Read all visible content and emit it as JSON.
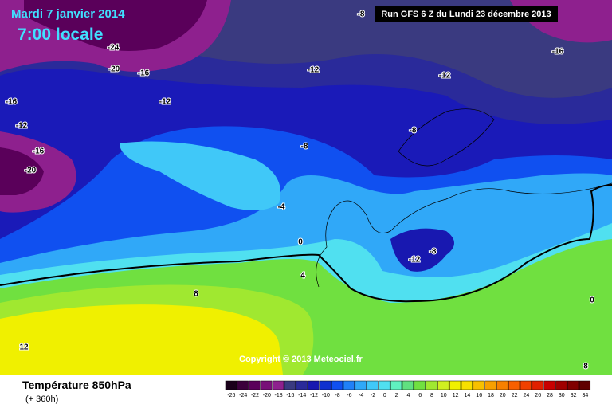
{
  "header": {
    "date": "Mardi 7 janvier 2014",
    "time": "7:00 locale",
    "run": "Run GFS 6 Z du Lundi 23 décembre 2013",
    "copyright": "Copyright © 2013 Meteociel.fr"
  },
  "footer": {
    "title": "Température 850hPa",
    "lead": "(+ 360h)"
  },
  "legend": {
    "values": [
      -26,
      -24,
      -22,
      -20,
      -18,
      -16,
      -14,
      -12,
      -10,
      -8,
      -6,
      -4,
      -2,
      0,
      2,
      4,
      6,
      8,
      10,
      12,
      14,
      16,
      18,
      20,
      22,
      24,
      26,
      28,
      30,
      32,
      34
    ],
    "colors": [
      "#1a001a",
      "#3c003c",
      "#5a005a",
      "#781078",
      "#8e208e",
      "#3a3a80",
      "#2a2a9a",
      "#1818b0",
      "#1030d0",
      "#1050f0",
      "#2080f8",
      "#30a8f8",
      "#40c8f8",
      "#50e0f0",
      "#60f0c0",
      "#60e080",
      "#70e040",
      "#a0e830",
      "#d0f020",
      "#f0f000",
      "#f8e000",
      "#f8c000",
      "#f8a000",
      "#f88000",
      "#f86000",
      "#f04000",
      "#e02000",
      "#c80000",
      "#a00000",
      "#800000",
      "#600000"
    ]
  },
  "map": {
    "contour_labels": [
      -8,
      -24,
      -20,
      -16,
      -16,
      -12,
      -12,
      -16,
      -12,
      -12,
      -8,
      -8,
      -16,
      -20,
      -4,
      0,
      -8,
      -12,
      4,
      8,
      0,
      12,
      8
    ]
  }
}
